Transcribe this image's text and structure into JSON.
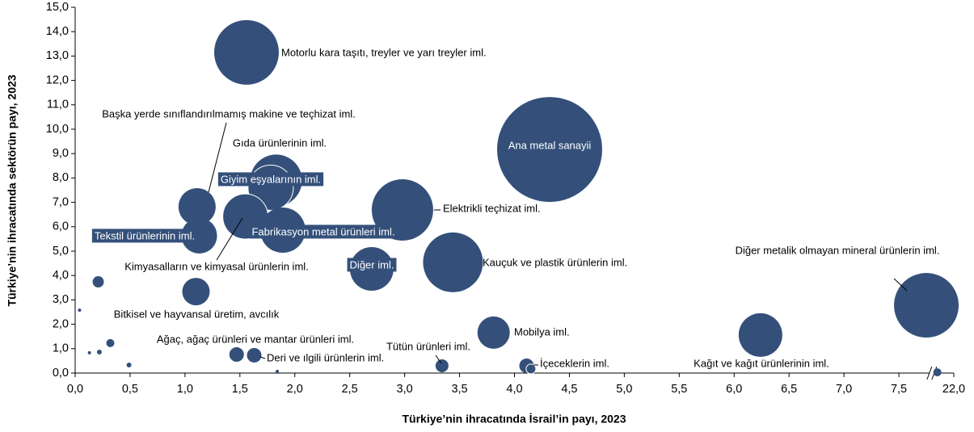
{
  "chart_data": {
    "type": "bubble",
    "x_label": "Türkiye’nin ihracatında İsrail’in payı, 2023",
    "y_label": "Türkiye’nin ihracatında sektörün payı, 2023",
    "xlim": [
      0,
      22
    ],
    "x_break": [
      7.8,
      21.8
    ],
    "ylim": [
      0,
      15
    ],
    "xticks": [
      {
        "value": 0,
        "label": "0,0"
      },
      {
        "value": 0.5,
        "label": "0,5"
      },
      {
        "value": 1,
        "label": "1,0"
      },
      {
        "value": 1.5,
        "label": "1,5"
      },
      {
        "value": 2,
        "label": "2,0"
      },
      {
        "value": 2.5,
        "label": "2,5"
      },
      {
        "value": 3,
        "label": "3,0"
      },
      {
        "value": 3.5,
        "label": "3,5"
      },
      {
        "value": 4,
        "label": "4,0"
      },
      {
        "value": 4.5,
        "label": "4,5"
      },
      {
        "value": 5,
        "label": "5,0"
      },
      {
        "value": 5.5,
        "label": "5,5"
      },
      {
        "value": 6,
        "label": "6,0"
      },
      {
        "value": 6.5,
        "label": "6,5"
      },
      {
        "value": 7,
        "label": "7,0"
      },
      {
        "value": 7.5,
        "label": "7,5"
      },
      {
        "value": 22,
        "label": "22,0"
      }
    ],
    "yticks": [
      {
        "value": 0,
        "label": "0,0"
      },
      {
        "value": 1,
        "label": "1,0"
      },
      {
        "value": 2,
        "label": "2,0"
      },
      {
        "value": 3,
        "label": "3,0"
      },
      {
        "value": 4,
        "label": "4,0"
      },
      {
        "value": 5,
        "label": "5,0"
      },
      {
        "value": 6,
        "label": "6,0"
      },
      {
        "value": 7,
        "label": "7,0"
      },
      {
        "value": 8,
        "label": "8,0"
      },
      {
        "value": 9,
        "label": "9,0"
      },
      {
        "value": 10,
        "label": "10,0"
      },
      {
        "value": 11,
        "label": "11,0"
      },
      {
        "value": 12,
        "label": "12,0"
      },
      {
        "value": 13,
        "label": "13,0"
      },
      {
        "value": 14,
        "label": "14,0"
      },
      {
        "value": 15,
        "label": "15,0"
      }
    ],
    "color": "#34507a",
    "x": [
      1.56,
      4.32,
      1.83,
      1.78,
      1.11,
      2.98,
      1.55,
      1.89,
      1.13,
      2.7,
      3.44,
      7.75,
      21.85,
      6.24,
      3.81,
      4.11,
      4.15,
      3.34,
      1.63,
      1.47,
      0.32,
      0.21,
      1.1,
      0.04,
      0.13,
      0.22,
      0.49,
      1.84
    ],
    "y": [
      13.15,
      9.17,
      7.9,
      7.6,
      6.82,
      6.69,
      6.42,
      5.86,
      5.63,
      4.27,
      4.54,
      2.78,
      0.03,
      1.56,
      1.66,
      0.3,
      0.17,
      0.3,
      0.73,
      0.76,
      1.23,
      3.74,
      3.34,
      2.58,
      0.83,
      0.86,
      0.33,
      0.07
    ],
    "sizes": [
      40,
      65,
      32,
      28,
      23,
      38,
      28,
      28,
      22,
      27,
      37,
      40,
      5,
      27,
      20,
      9,
      6,
      8,
      9,
      9,
      5,
      7,
      17,
      2,
      2,
      3,
      3,
      2
    ],
    "labels": [
      "Motorlu kara taşıtı, treyler ve yarı treyler iml.",
      "Ana metal sanayii",
      "Gıda ürünlerinin iml.",
      "Giyim eşyalarının iml.",
      "Başka yerde sınıflandırılmamış makine ve teçhizat iml.",
      "Elektrikli teçhizat iml.",
      "Kimyasalların ve kimyasal ürünlerin iml.",
      "Fabrikasyon metal ürünleri iml.",
      "Tekstil ürünlerinin iml.",
      "Diğer iml.",
      "Kauçuk ve plastik ürünlerin iml.",
      "Diğer metalik olmayan mineral ürünlerin iml.",
      null,
      "Kağıt ve kağıt ürünlerinin iml.",
      "Mobilya iml.",
      "İçeceklerin iml.",
      null,
      "Tütün ürünleri iml.",
      "Deri ve ılgili ürünlerin iml.",
      null,
      "Ağaç, ağaç ürünleri ve mantar ürünleri iml.",
      "Bitkisel ve hayvansal üretim, avcılık",
      null,
      null,
      null,
      null,
      null,
      null
    ]
  }
}
